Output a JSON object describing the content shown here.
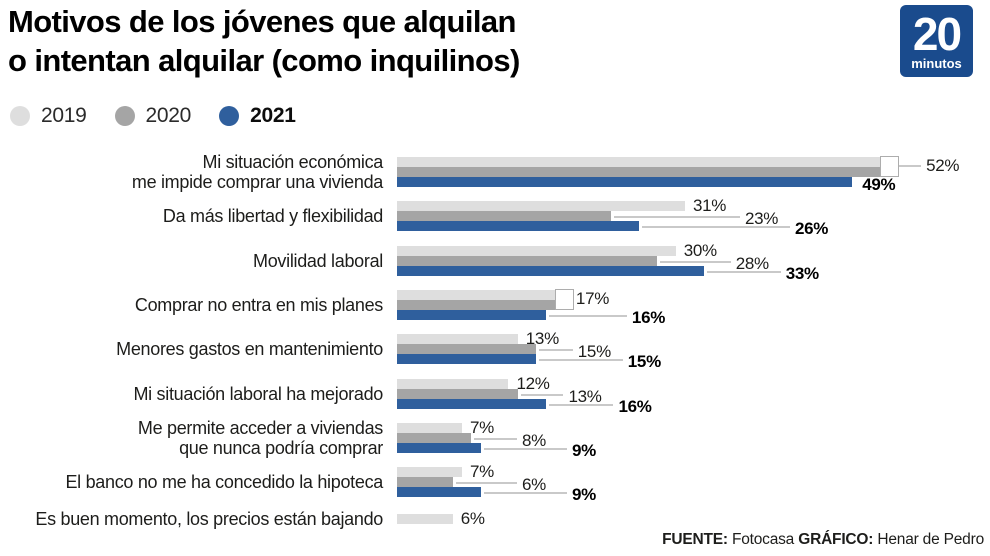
{
  "header": {
    "title_line1": "Motivos de los jóvenes que alquilan",
    "title_line2": "o intentan alquilar (como inquilinos)",
    "logo": {
      "big": "20",
      "small": "minutos",
      "bg_color": "#1a4b8d"
    }
  },
  "legend": [
    {
      "label": "2019",
      "color": "#dedede",
      "bold": false
    },
    {
      "label": "2020",
      "color": "#a5a5a5",
      "bold": false
    },
    {
      "label": "2021",
      "color": "#2f5f9d",
      "bold": true
    }
  ],
  "footer": {
    "source_label": "FUENTE:",
    "source_value": " Fotocasa  ",
    "graphic_label": "GRÁFICO:",
    "graphic_value": " Henar de Pedro"
  },
  "chart_data": {
    "type": "bar",
    "orientation": "horizontal",
    "unit": "%",
    "title": "Motivos de los jóvenes que alquilan o intentan alquilar (como inquilinos)",
    "legend_position": "top-left",
    "grid": false,
    "xlim": [
      0,
      57
    ],
    "value_labels": true,
    "categories": [
      "Mi situación económica\nme impide comprar una vivienda",
      "Da más libertad y flexibilidad",
      "Movilidad laboral",
      "Comprar no entra en mis planes",
      "Menores gastos en mantenimiento",
      "Mi situación laboral ha mejorado",
      "Me permite acceder a viviendas\nque nunca podría comprar",
      "El banco no me ha concedido la hipoteca",
      "Es buen momento, los precios están bajando"
    ],
    "series": [
      {
        "name": "2019",
        "color": "#dedede",
        "values": [
          52,
          31,
          30,
          17,
          13,
          12,
          7,
          7,
          6
        ]
      },
      {
        "name": "2020",
        "color": "#a5a5a5",
        "values": [
          52,
          23,
          28,
          17,
          15,
          13,
          8,
          6,
          null
        ]
      },
      {
        "name": "2021",
        "color": "#2f5f9d",
        "values": [
          49,
          26,
          33,
          16,
          15,
          16,
          9,
          9,
          null
        ]
      }
    ],
    "row_layout": [
      {
        "mode": "bracket",
        "label_gap": 27,
        "label2": "adjacent"
      },
      {
        "mode": "stagger"
      },
      {
        "mode": "stagger"
      },
      {
        "mode": "bracket",
        "label_gap": 2,
        "label2": "stagger"
      },
      {
        "mode": "stagger"
      },
      {
        "mode": "stagger"
      },
      {
        "mode": "stagger"
      },
      {
        "mode": "stagger"
      },
      {
        "mode": "single"
      }
    ]
  }
}
